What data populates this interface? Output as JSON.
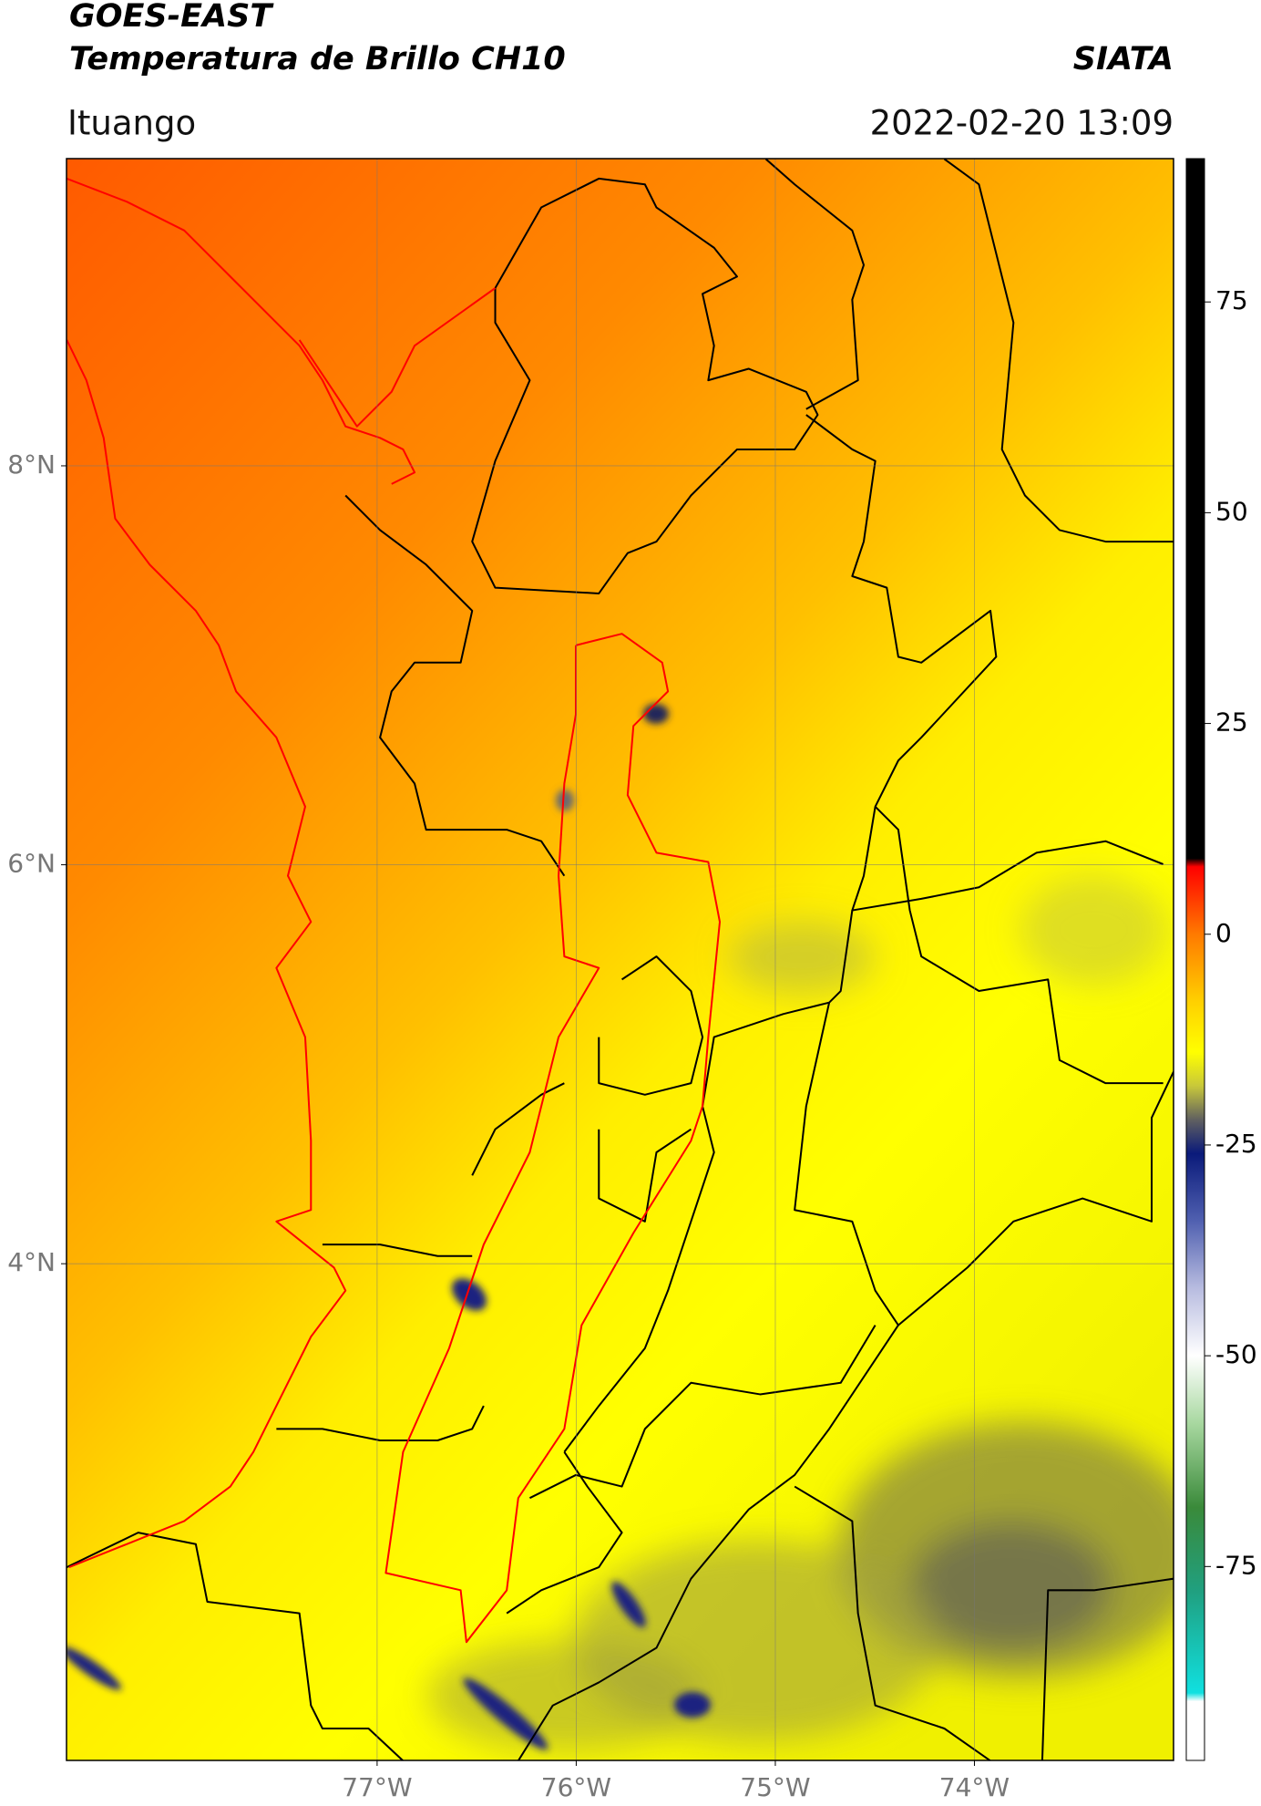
{
  "header": {
    "title_line1": "GOES-EAST",
    "title_line2": "Temperatura de Brillo CH10",
    "source": "SIATA",
    "location": "Ituango",
    "datetime": "2022-02-20 13:09"
  },
  "map": {
    "lon_range": [
      -78.56,
      -73.0
    ],
    "lat_range": [
      1.51,
      9.54
    ],
    "lon_ticks": [
      {
        "value": -77,
        "label": "77°W"
      },
      {
        "value": -76,
        "label": "76°W"
      },
      {
        "value": -75,
        "label": "75°W"
      },
      {
        "value": -74,
        "label": "74°W"
      }
    ],
    "lat_ticks": [
      {
        "value": 8,
        "label": "8°N"
      },
      {
        "value": 6,
        "label": "6°N"
      },
      {
        "value": 4,
        "label": "4°N"
      }
    ]
  },
  "colorbar": {
    "lim": [
      -98,
      92
    ],
    "ticks": [
      75,
      50,
      25,
      0,
      -25,
      -50,
      -75
    ],
    "stops": [
      {
        "value": 92,
        "color": "#000000"
      },
      {
        "value": 9,
        "color": "#000000"
      },
      {
        "value": 8,
        "color": "#ff0000"
      },
      {
        "value": 0,
        "color": "#ff7a00"
      },
      {
        "value": -8,
        "color": "#ffd000"
      },
      {
        "value": -14,
        "color": "#ffff00"
      },
      {
        "value": -18,
        "color": "#c8c83a"
      },
      {
        "value": -22,
        "color": "#606060"
      },
      {
        "value": -26,
        "color": "#0a1a7a"
      },
      {
        "value": -34,
        "color": "#5060b0"
      },
      {
        "value": -42,
        "color": "#b8bce0"
      },
      {
        "value": -50,
        "color": "#ffffff"
      },
      {
        "value": -58,
        "color": "#a8d8a0"
      },
      {
        "value": -68,
        "color": "#3a8a3a"
      },
      {
        "value": -78,
        "color": "#20a080"
      },
      {
        "value": -90,
        "color": "#10e0e0"
      },
      {
        "value": -91,
        "color": "#ffffff"
      },
      {
        "value": -98,
        "color": "#ffffff"
      }
    ]
  }
}
